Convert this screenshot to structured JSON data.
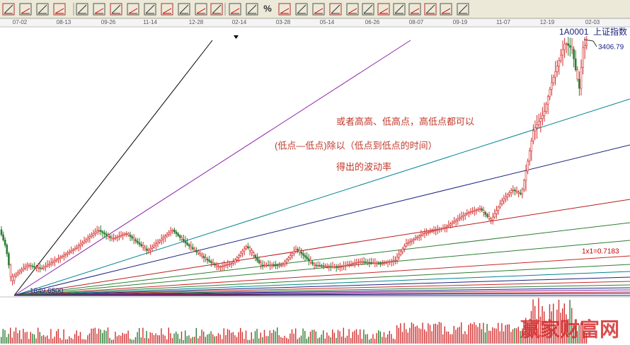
{
  "toolbar": {
    "percent": "%"
  },
  "date_axis": [
    "07-02",
    "08-13",
    "09-26",
    "11-14",
    "12-28",
    "02-14",
    "03-28",
    "05-14",
    "06-26",
    "08-07",
    "09-19",
    "11-07",
    "12-19",
    "02-03"
  ],
  "index": {
    "code": "1A0001",
    "name": "上证指数",
    "price": "3406.79"
  },
  "fan_label": "1x1=0.7183",
  "low_label": "1849.6500",
  "annotations": [
    "或者高高、低高点，高低点都可以",
    "(低点—低点)除以（低点到低点的时间）",
    "得出的波动率"
  ],
  "watermark": "赢家财富网"
}
